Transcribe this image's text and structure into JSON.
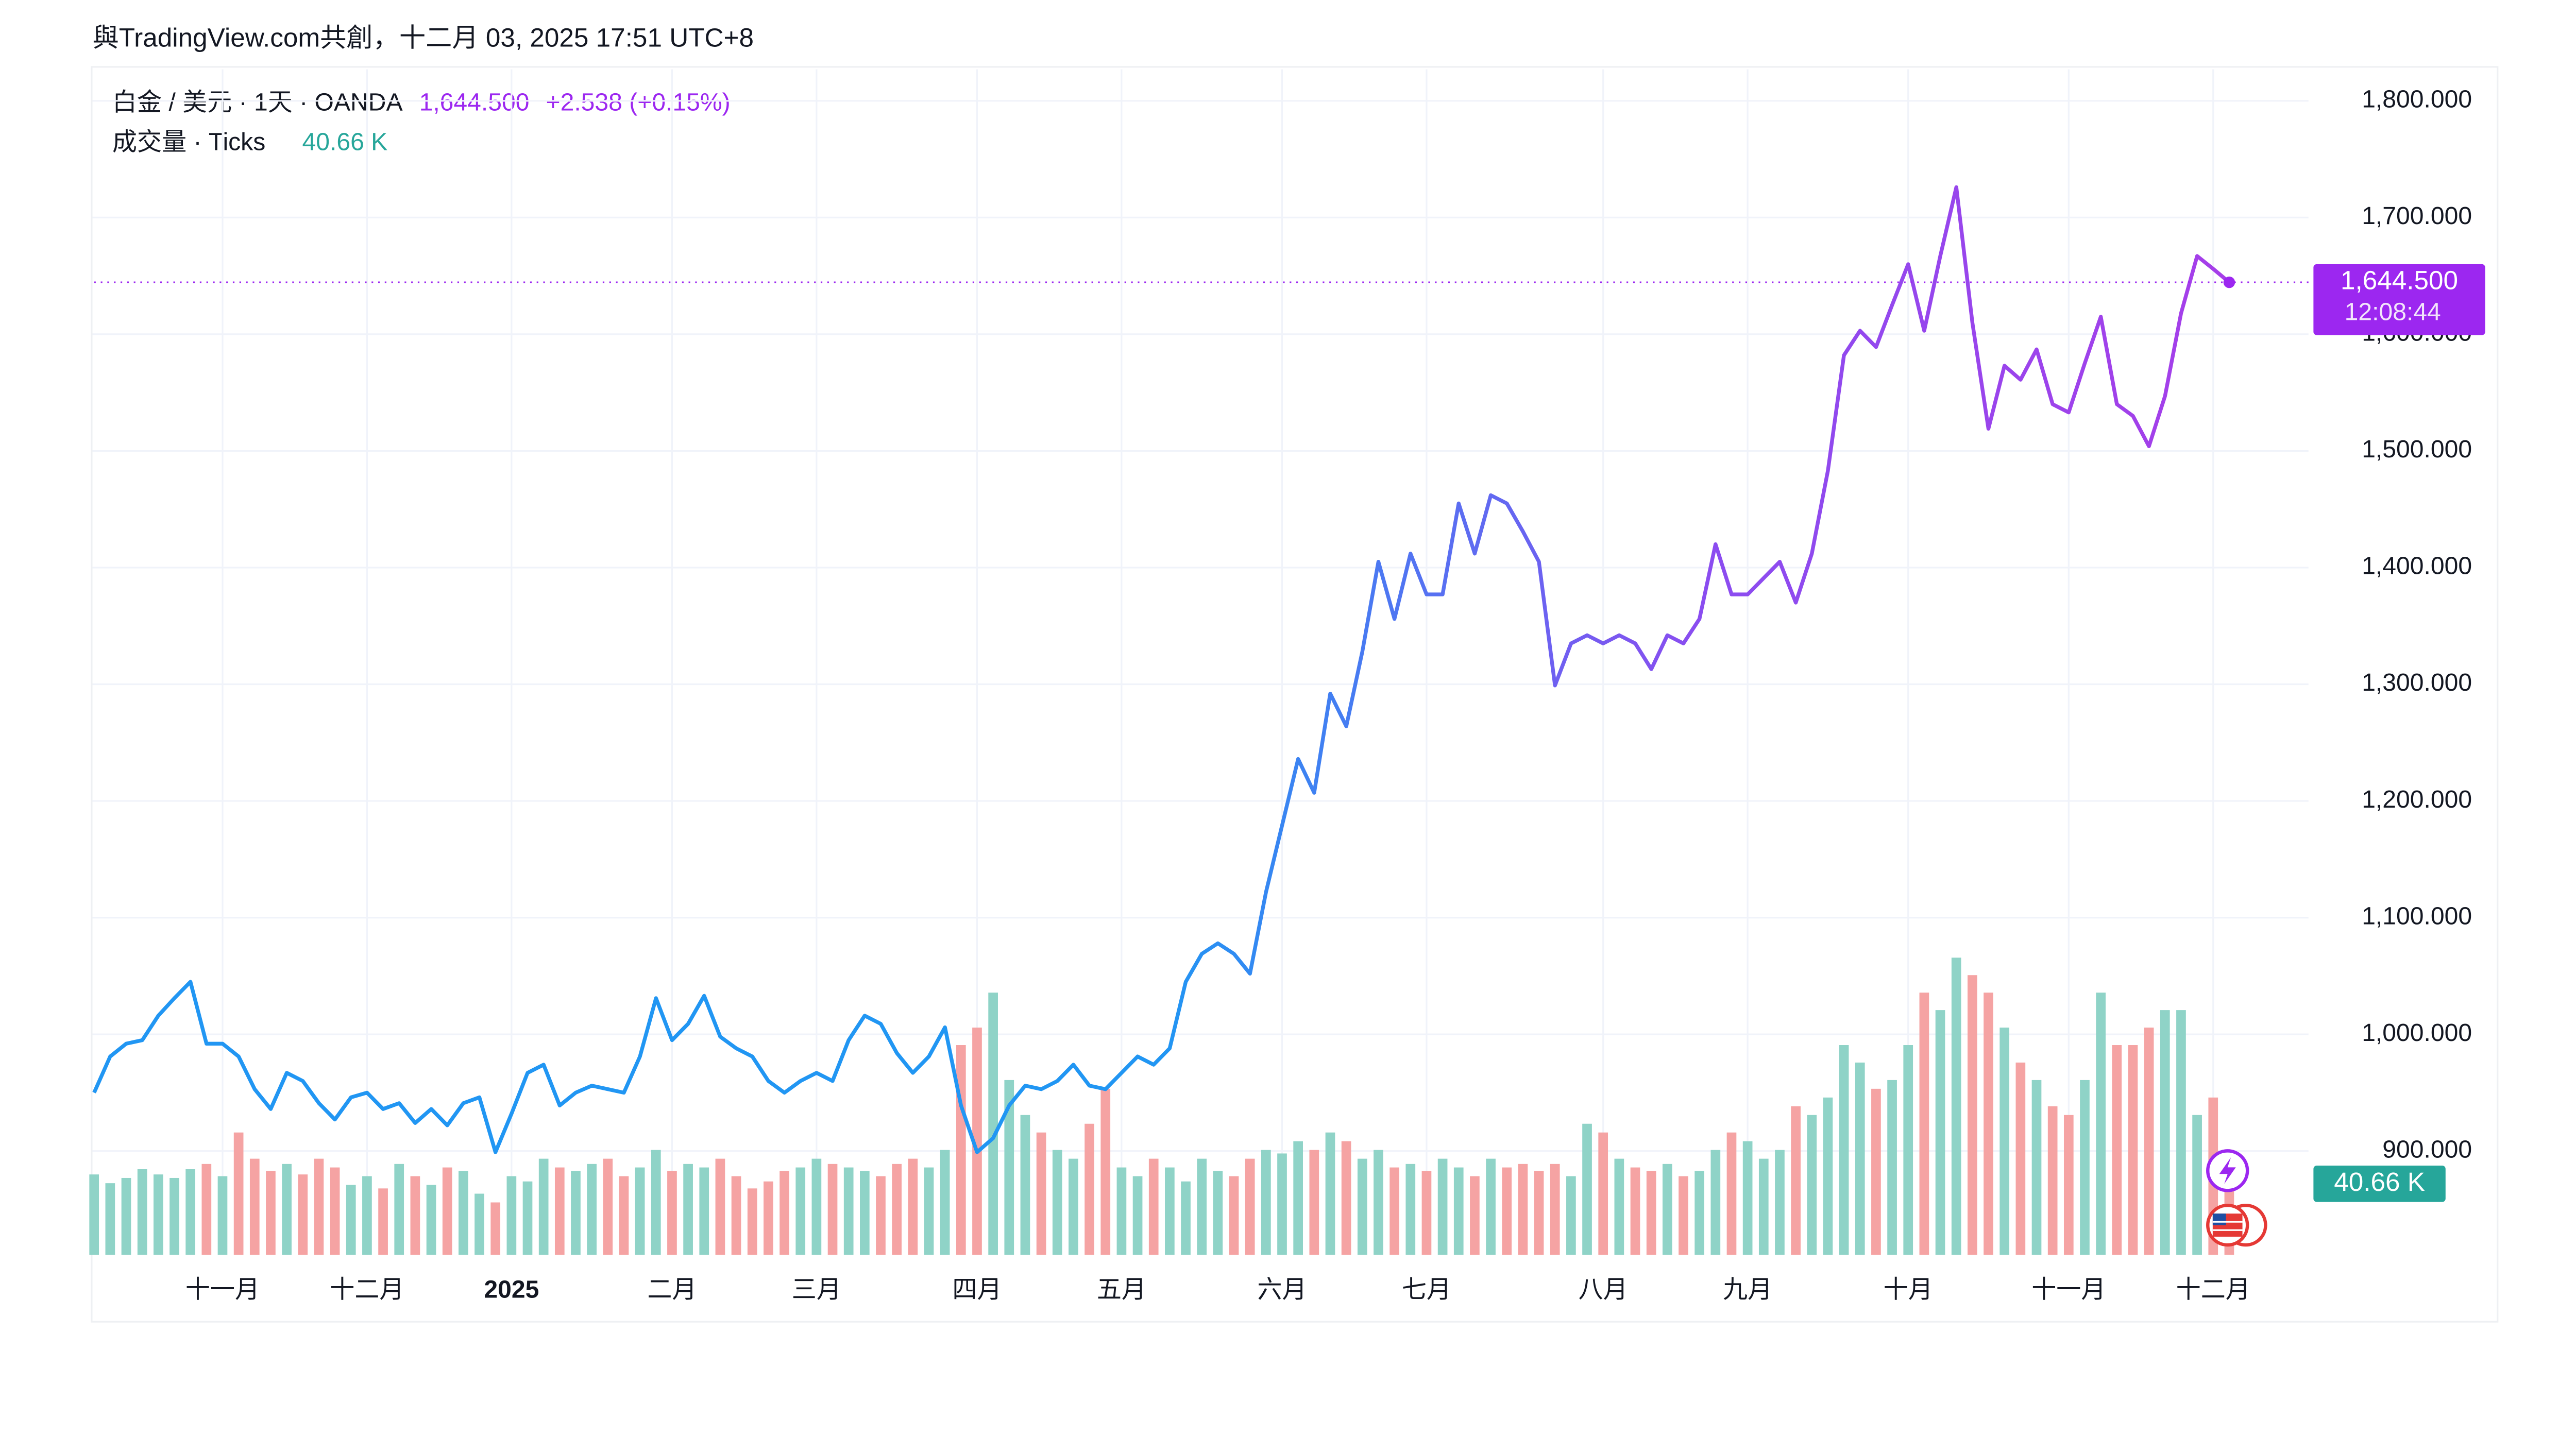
{
  "chart_data": {
    "type": "line",
    "title": "與TradingView.com共創，十二月 03, 2025 17:51 UTC+8",
    "legend": {
      "price": "1,644.500",
      "change": "+2.538 (+0.15%)",
      "volume_value": "40.66 K",
      "price_tag_time": "12:08:44"
    },
    "categories": [
      null,
      null,
      null,
      null,
      null,
      null,
      null,
      null,
      "十一月",
      null,
      null,
      null,
      null,
      null,
      null,
      null,
      null,
      "十二月",
      null,
      null,
      null,
      null,
      null,
      null,
      null,
      null,
      "2025",
      null,
      null,
      null,
      null,
      null,
      null,
      null,
      null,
      null,
      "二月",
      null,
      null,
      null,
      null,
      null,
      null,
      null,
      null,
      "三月",
      null,
      null,
      null,
      null,
      null,
      null,
      null,
      null,
      null,
      "四月",
      null,
      null,
      null,
      null,
      null,
      null,
      null,
      null,
      "五月",
      null,
      null,
      null,
      null,
      null,
      null,
      null,
      null,
      null,
      "六月",
      null,
      null,
      null,
      null,
      null,
      null,
      null,
      null,
      "七月",
      null,
      null,
      null,
      null,
      null,
      null,
      null,
      null,
      null,
      null,
      "八月",
      null,
      null,
      null,
      null,
      null,
      null,
      null,
      null,
      "九月",
      null,
      null,
      null,
      null,
      null,
      null,
      null,
      null,
      null,
      "十月",
      null,
      null,
      null,
      null,
      null,
      null,
      null,
      null,
      null,
      "十一月",
      null,
      null,
      null,
      null,
      null,
      null,
      null,
      null,
      "十二月",
      null
    ],
    "series": [
      {
        "name": "白金 / 美元 · 1天 · OANDA",
        "colors": [
          "#2196f3",
          "#2196f3",
          "#2196f3",
          "#8a4df0",
          "#a63ee9"
        ],
        "values": [
          950,
          981,
          992,
          995,
          1016,
          1031,
          1045,
          992,
          992,
          981,
          953,
          936,
          967,
          960,
          941,
          927,
          946,
          950,
          936,
          941,
          924,
          936,
          922,
          941,
          946,
          899,
          932,
          967,
          974,
          939,
          950,
          956,
          953,
          950,
          981,
          1031,
          995,
          1009,
          1033,
          998,
          988,
          981,
          960,
          950,
          960,
          967,
          960,
          995,
          1016,
          1009,
          984,
          967,
          981,
          1006,
          939,
          899,
          911,
          939,
          956,
          953,
          960,
          974,
          956,
          953,
          967,
          981,
          974,
          988,
          1045,
          1069,
          1078,
          1069,
          1052,
          1122,
          1179,
          1236,
          1207,
          1292,
          1264,
          1328,
          1405,
          1356,
          1412,
          1377,
          1377,
          1455,
          1412,
          1462,
          1455,
          1431,
          1405,
          1299,
          1335,
          1342,
          1335,
          1342,
          1335,
          1313,
          1342,
          1335,
          1356,
          1420,
          1377,
          1377,
          1391,
          1405,
          1370,
          1412,
          1483,
          1582,
          1603,
          1589,
          1625,
          1660,
          1603,
          1667,
          1726,
          1610,
          1519,
          1573,
          1561,
          1587,
          1540,
          1533,
          1575,
          1615,
          1540,
          1530,
          1504,
          1547,
          1618,
          1667,
          1656,
          1644.5
        ]
      },
      {
        "name": "成交量 · Ticks",
        "up_color": "#8fd3c7",
        "down_color": "#f5a3a3",
        "values": [
          46,
          41,
          44,
          49,
          46,
          44,
          49,
          52,
          45,
          70,
          55,
          48,
          52,
          46,
          55,
          50,
          40,
          45,
          38,
          52,
          45,
          40,
          50,
          48,
          35,
          30,
          45,
          42,
          55,
          50,
          48,
          52,
          55,
          45,
          50,
          60,
          48,
          52,
          50,
          55,
          45,
          38,
          42,
          48,
          50,
          55,
          52,
          50,
          48,
          45,
          52,
          55,
          50,
          60,
          120,
          130,
          150,
          100,
          80,
          70,
          60,
          55,
          75,
          95,
          50,
          45,
          55,
          50,
          42,
          55,
          48,
          45,
          55,
          60,
          58,
          65,
          60,
          70,
          65,
          55,
          60,
          50,
          52,
          48,
          55,
          50,
          45,
          55,
          50,
          52,
          48,
          52,
          45,
          75,
          70,
          55,
          50,
          48,
          52,
          45,
          48,
          60,
          70,
          65,
          55,
          60,
          85,
          80,
          90,
          120,
          110,
          95,
          100,
          120,
          150,
          140,
          170,
          160,
          150,
          130,
          110,
          100,
          85,
          80,
          100,
          150,
          120,
          120,
          130,
          140,
          140,
          80,
          90,
          40.66
        ]
      }
    ],
    "ylim": [
      811,
      1827
    ],
    "yticks": [
      {
        "value": 900,
        "label": "900.000"
      },
      {
        "value": 1000,
        "label": "1,000.000"
      },
      {
        "value": 1100,
        "label": "1,100.000"
      },
      {
        "value": 1200,
        "label": "1,200.000"
      },
      {
        "value": 1300,
        "label": "1,300.000"
      },
      {
        "value": 1400,
        "label": "1,400.000"
      },
      {
        "value": 1500,
        "label": "1,500.000"
      },
      {
        "value": 1600,
        "label": "1,600.000"
      },
      {
        "value": 1700,
        "label": "1,700.000"
      },
      {
        "value": 1800,
        "label": "1,800.000"
      }
    ],
    "grid": true,
    "price_color": "#9c27f0",
    "volume_tag_color": "#26a69a",
    "bold_year_labels": true
  }
}
